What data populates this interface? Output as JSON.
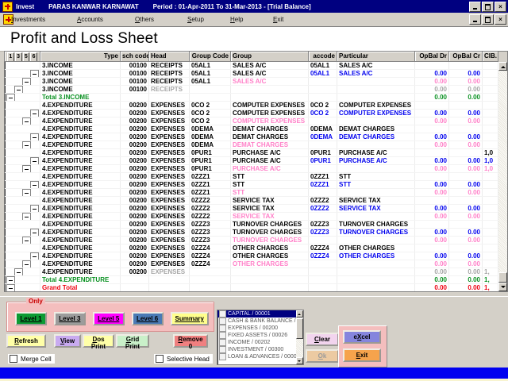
{
  "icons": {
    "close": "×"
  },
  "titlebar": {
    "app": "Invest",
    "client": "PARAS KANWAR KARNAWAT",
    "period": "Period : 01-Apr-2011  To  31-Mar-2013 - [Trial Balance]"
  },
  "menubar": {
    "items": [
      {
        "label": "Investments",
        "u": 0
      },
      {
        "label": "Accounts",
        "u": 0
      },
      {
        "label": "Others",
        "u": 0
      },
      {
        "label": "Setup",
        "u": 0
      },
      {
        "label": "Help",
        "u": 0
      },
      {
        "label": "Exit",
        "u": 0
      }
    ]
  },
  "page_title": "Profit and Loss Sheet",
  "grid": {
    "level_buttons": [
      "1",
      "3",
      "5",
      "6"
    ],
    "columns": [
      "Type",
      "sch code",
      "Head",
      "Group Code",
      "Group",
      "accode",
      "Particular",
      "OpBal Dr",
      "OpBal Cr",
      "ClB."
    ],
    "rows": [
      {
        "v": "base",
        "type": "3.INCOME",
        "sch": "00100",
        "head": "RECEIPTS",
        "gc": "05AL1",
        "gr": "SALES A/C",
        "ac": "05AL1",
        "pa": "SALES A/C",
        "dr": "",
        "cr": "",
        "cb": "",
        "box": null
      },
      {
        "v": "acc",
        "type": "3.INCOME",
        "sch": "00100",
        "head": "RECEIPTS",
        "gc": "05AL1",
        "gr": "SALES A/C",
        "ac": "05AL1",
        "pa": "SALES A/C",
        "dr": "0.00",
        "cr": "0.00",
        "cb": "",
        "box": 4
      },
      {
        "v": "grp",
        "type": "3.INCOME",
        "sch": "00100",
        "head": "RECEIPTS",
        "gc": "05AL1",
        "gr": "SALES A/C",
        "ac": "",
        "pa": "",
        "dr": "0.00",
        "cr": "0.00",
        "cb": "",
        "box": 3
      },
      {
        "v": "head",
        "type": "3.INCOME",
        "sch": "00100",
        "head": "RECEIPTS",
        "gc": "",
        "gr": "",
        "ac": "",
        "pa": "",
        "dr": "0.00",
        "cr": "0.00",
        "cb": "",
        "box": 2
      },
      {
        "v": "total",
        "type": "Total 3.INCOME",
        "sch": "",
        "head": "",
        "gc": "",
        "gr": "",
        "ac": "",
        "pa": "",
        "dr": "0.00",
        "cr": "0.00",
        "cb": "",
        "box": 1
      },
      {
        "v": "base",
        "type": "4.EXPENDITURE",
        "sch": "00200",
        "head": "EXPENSES",
        "gc": "0CO 2",
        "gr": "COMPUTER EXPENSES",
        "ac": "0CO 2",
        "pa": "COMPUTER EXPENSES",
        "dr": "",
        "cr": "",
        "cb": "",
        "box": null
      },
      {
        "v": "acc",
        "type": "4.EXPENDITURE",
        "sch": "00200",
        "head": "EXPENSES",
        "gc": "0CO 2",
        "gr": "COMPUTER EXPENSES",
        "ac": "0CO 2",
        "pa": "COMPUTER EXPENSES",
        "dr": "0.00",
        "cr": "0.00",
        "cb": "",
        "box": 4
      },
      {
        "v": "grp",
        "type": "4.EXPENDITURE",
        "sch": "00200",
        "head": "EXPENSES",
        "gc": "0CO 2",
        "gr": "COMPUTER EXPENSES",
        "ac": "",
        "pa": "",
        "dr": "0.00",
        "cr": "0.00",
        "cb": "",
        "box": 3
      },
      {
        "v": "base",
        "type": "4.EXPENDITURE",
        "sch": "00200",
        "head": "EXPENSES",
        "gc": "0DEMA",
        "gr": "DEMAT CHARGES",
        "ac": "0DEMA",
        "pa": "DEMAT CHARGES",
        "dr": "",
        "cr": "",
        "cb": "",
        "box": null
      },
      {
        "v": "acc",
        "type": "4.EXPENDITURE",
        "sch": "00200",
        "head": "EXPENSES",
        "gc": "0DEMA",
        "gr": "DEMAT CHARGES",
        "ac": "0DEMA",
        "pa": "DEMAT CHARGES",
        "dr": "0.00",
        "cr": "0.00",
        "cb": "",
        "box": 4
      },
      {
        "v": "grp",
        "type": "4.EXPENDITURE",
        "sch": "00200",
        "head": "EXPENSES",
        "gc": "0DEMA",
        "gr": "DEMAT CHARGES",
        "ac": "",
        "pa": "",
        "dr": "0.00",
        "cr": "0.00",
        "cb": "",
        "box": 3
      },
      {
        "v": "base",
        "type": "4.EXPENDITURE",
        "sch": "00200",
        "head": "EXPENSES",
        "gc": "0PUR1",
        "gr": "PURCHASE A/C",
        "ac": "0PUR1",
        "pa": "PURCHASE A/C",
        "dr": "",
        "cr": "",
        "cb": "1,0",
        "box": null
      },
      {
        "v": "acc",
        "type": "4.EXPENDITURE",
        "sch": "00200",
        "head": "EXPENSES",
        "gc": "0PUR1",
        "gr": "PURCHASE A/C",
        "ac": "0PUR1",
        "pa": "PURCHASE A/C",
        "dr": "0.00",
        "cr": "0.00",
        "cb": "1,0",
        "box": 4
      },
      {
        "v": "grp",
        "type": "4.EXPENDITURE",
        "sch": "00200",
        "head": "EXPENSES",
        "gc": "0PUR1",
        "gr": "PURCHASE A/C",
        "ac": "",
        "pa": "",
        "dr": "0.00",
        "cr": "0.00",
        "cb": "1,0",
        "box": 3
      },
      {
        "v": "base",
        "type": "4.EXPENDITURE",
        "sch": "00200",
        "head": "EXPENSES",
        "gc": "0ZZZ1",
        "gr": "STT",
        "ac": "0ZZZ1",
        "pa": "STT",
        "dr": "",
        "cr": "",
        "cb": "",
        "box": null
      },
      {
        "v": "acc",
        "type": "4.EXPENDITURE",
        "sch": "00200",
        "head": "EXPENSES",
        "gc": "0ZZZ1",
        "gr": "STT",
        "ac": "0ZZZ1",
        "pa": "STT",
        "dr": "0.00",
        "cr": "0.00",
        "cb": "",
        "box": 4
      },
      {
        "v": "grp",
        "type": "4.EXPENDITURE",
        "sch": "00200",
        "head": "EXPENSES",
        "gc": "0ZZZ1",
        "gr": "STT",
        "ac": "",
        "pa": "",
        "dr": "0.00",
        "cr": "0.00",
        "cb": "",
        "box": 3
      },
      {
        "v": "base",
        "type": "4.EXPENDITURE",
        "sch": "00200",
        "head": "EXPENSES",
        "gc": "0ZZZ2",
        "gr": "SERVICE TAX",
        "ac": "0ZZZ2",
        "pa": "SERVICE TAX",
        "dr": "",
        "cr": "",
        "cb": "",
        "box": null
      },
      {
        "v": "acc",
        "type": "4.EXPENDITURE",
        "sch": "00200",
        "head": "EXPENSES",
        "gc": "0ZZZ2",
        "gr": "SERVICE TAX",
        "ac": "0ZZZ2",
        "pa": "SERVICE TAX",
        "dr": "0.00",
        "cr": "0.00",
        "cb": "",
        "box": 4
      },
      {
        "v": "grp",
        "type": "4.EXPENDITURE",
        "sch": "00200",
        "head": "EXPENSES",
        "gc": "0ZZZ2",
        "gr": "SERVICE TAX",
        "ac": "",
        "pa": "",
        "dr": "0.00",
        "cr": "0.00",
        "cb": "",
        "box": 3
      },
      {
        "v": "base",
        "type": "4.EXPENDITURE",
        "sch": "00200",
        "head": "EXPENSES",
        "gc": "0ZZZ3",
        "gr": "TURNOVER CHARGES",
        "ac": "0ZZZ3",
        "pa": "TURNOVER CHARGES",
        "dr": "",
        "cr": "",
        "cb": "",
        "box": null
      },
      {
        "v": "acc",
        "type": "4.EXPENDITURE",
        "sch": "00200",
        "head": "EXPENSES",
        "gc": "0ZZZ3",
        "gr": "TURNOVER CHARGES",
        "ac": "0ZZZ3",
        "pa": "TURNOVER CHARGES",
        "dr": "0.00",
        "cr": "0.00",
        "cb": "",
        "box": 4
      },
      {
        "v": "grp",
        "type": "4.EXPENDITURE",
        "sch": "00200",
        "head": "EXPENSES",
        "gc": "0ZZZ3",
        "gr": "TURNOVER CHARGES",
        "ac": "",
        "pa": "",
        "dr": "0.00",
        "cr": "0.00",
        "cb": "",
        "box": 3
      },
      {
        "v": "base",
        "type": "4.EXPENDITURE",
        "sch": "00200",
        "head": "EXPENSES",
        "gc": "0ZZZ4",
        "gr": "OTHER CHARGES",
        "ac": "0ZZZ4",
        "pa": "OTHER CHARGES",
        "dr": "",
        "cr": "",
        "cb": "",
        "box": null
      },
      {
        "v": "acc",
        "type": "4.EXPENDITURE",
        "sch": "00200",
        "head": "EXPENSES",
        "gc": "0ZZZ4",
        "gr": "OTHER CHARGES",
        "ac": "0ZZZ4",
        "pa": "OTHER CHARGES",
        "dr": "0.00",
        "cr": "0.00",
        "cb": "",
        "box": 4
      },
      {
        "v": "grp",
        "type": "4.EXPENDITURE",
        "sch": "00200",
        "head": "EXPENSES",
        "gc": "0ZZZ4",
        "gr": "OTHER CHARGES",
        "ac": "",
        "pa": "",
        "dr": "0.00",
        "cr": "0.00",
        "cb": "",
        "box": 3
      },
      {
        "v": "head",
        "type": "4.EXPENDITURE",
        "sch": "00200",
        "head": "EXPENSES",
        "gc": "",
        "gr": "",
        "ac": "",
        "pa": "",
        "dr": "0.00",
        "cr": "0.00",
        "cb": "1,",
        "box": 2
      },
      {
        "v": "total",
        "type": "Total 4.EXPENDITURE",
        "sch": "",
        "head": "",
        "gc": "",
        "gr": "",
        "ac": "",
        "pa": "",
        "dr": "0.00",
        "cr": "0.00",
        "cb": "1,",
        "box": 1
      },
      {
        "v": "grand",
        "type": "Grand Total",
        "sch": "",
        "head": "",
        "gc": "",
        "gr": "",
        "ac": "",
        "pa": "",
        "dr": "0.00",
        "cr": "0.00",
        "cb": "1,",
        "box": 1
      }
    ]
  },
  "footer": {
    "only_label": "Only",
    "level_buttons": [
      {
        "label": "Level 1",
        "bg": "#0c9b34"
      },
      {
        "label": "Level 3",
        "bg": "#9c9c9c"
      },
      {
        "label": "Level 5",
        "bg": "#ff00ff"
      },
      {
        "label": "Level 6",
        "bg": "#4a7ab5"
      },
      {
        "label": "Summary",
        "bg": "#ffff8c",
        "u": 0
      }
    ],
    "action_buttons": [
      {
        "label": "Refresh",
        "bg": "#ffffa8",
        "u": 0
      },
      {
        "label": "View",
        "bg": "#c8aaf0",
        "u": 0
      },
      {
        "label": "Dos Print",
        "bg": "#ffffa8",
        "u": 0
      },
      {
        "label": "Grid Print",
        "bg": "#c9f0c9",
        "u": 0
      },
      {
        "label": "Remove 0",
        "bg": "#f08080",
        "u": 0
      }
    ],
    "merge_cell_label": "Merge Cell",
    "selective_head_label": "Selective Head",
    "clear_button": {
      "label": "Clear",
      "bg": "#f2d4ee",
      "u": 0
    },
    "ok_button": {
      "label": "Ok",
      "bg": "#eccaa2",
      "fg": "#9a9a9a",
      "u": 0
    },
    "excel_button": {
      "label": "eXcel",
      "bg": "#8585dd",
      "u": 1
    },
    "exit_button": {
      "label": "Exit",
      "bg": "#f6a34c",
      "u": 0
    }
  },
  "listbox": {
    "selected_index": 0,
    "items": [
      "CAPITAL / 00001",
      "CASH & BANK BALANCE /",
      "EXPENSES / 00200",
      "FIXED ASSETS / 00026",
      "INCOME / 00202",
      "INVESTMENT / 00300",
      "LOAN & ADVANCES / 0000"
    ]
  }
}
